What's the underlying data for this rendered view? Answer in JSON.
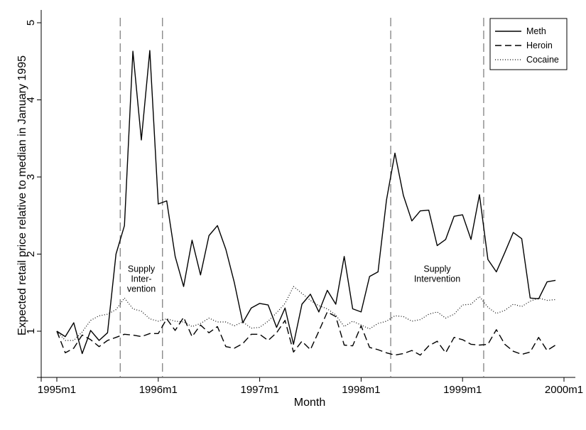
{
  "chart_data": {
    "type": "line",
    "xlabel": "Month",
    "ylabel": "Expected retail price relative to median in January 1995",
    "x_ticks": [
      {
        "value": 0,
        "label": "1995m1"
      },
      {
        "value": 12,
        "label": "1996m1"
      },
      {
        "value": 24,
        "label": "1997m1"
      },
      {
        "value": 36,
        "label": "1998m1"
      },
      {
        "value": 48,
        "label": "1999m1"
      },
      {
        "value": 60,
        "label": "2000m1"
      }
    ],
    "y_ticks": [
      1,
      2,
      3,
      4,
      5
    ],
    "xlim": [
      0,
      60
    ],
    "ylim": [
      0.5,
      5
    ],
    "grid": false,
    "legend_position": "top-right",
    "series": [
      {
        "name": "Meth",
        "style": "solid",
        "x": [
          0,
          1,
          2,
          3,
          4,
          5,
          6,
          7,
          8,
          9,
          10,
          11,
          12,
          13,
          14,
          15,
          16,
          17,
          18,
          19,
          20,
          21,
          22,
          23,
          24,
          25,
          26,
          27,
          28,
          29,
          30,
          31,
          32,
          33,
          34,
          35,
          36,
          37,
          38,
          39,
          40,
          41,
          42,
          43,
          44,
          45,
          46,
          47,
          48,
          49,
          50,
          51,
          52,
          53,
          54,
          55,
          56,
          57,
          58,
          59
        ],
        "values": [
          1.0,
          0.93,
          1.11,
          0.71,
          1.01,
          0.88,
          0.98,
          2.0,
          2.37,
          4.63,
          3.48,
          4.64,
          2.65,
          2.69,
          1.97,
          1.58,
          2.18,
          1.73,
          2.24,
          2.37,
          2.06,
          1.63,
          1.11,
          1.3,
          1.36,
          1.34,
          1.05,
          1.3,
          0.83,
          1.35,
          1.48,
          1.25,
          1.53,
          1.35,
          1.97,
          1.29,
          1.25,
          1.71,
          1.77,
          2.7,
          3.31,
          2.76,
          2.43,
          2.56,
          2.57,
          2.11,
          2.19,
          2.49,
          2.51,
          2.19,
          2.77,
          1.93,
          1.77,
          2.02,
          2.28,
          2.2,
          1.43,
          1.42,
          1.64,
          1.66
        ]
      },
      {
        "name": "Heroin",
        "style": "dashed",
        "x": [
          0,
          1,
          2,
          3,
          4,
          5,
          6,
          7,
          8,
          9,
          10,
          11,
          12,
          13,
          14,
          15,
          16,
          17,
          18,
          19,
          20,
          21,
          22,
          23,
          24,
          25,
          26,
          27,
          28,
          29,
          30,
          31,
          32,
          33,
          34,
          35,
          36,
          37,
          38,
          39,
          40,
          41,
          42,
          43,
          44,
          45,
          46,
          47,
          48,
          49,
          50,
          51,
          52,
          53,
          54,
          55,
          56,
          57,
          58,
          59
        ],
        "values": [
          1.0,
          0.72,
          0.78,
          0.95,
          0.89,
          0.8,
          0.88,
          0.92,
          0.96,
          0.95,
          0.93,
          0.97,
          0.97,
          1.16,
          1.01,
          1.18,
          0.93,
          1.08,
          0.98,
          1.06,
          0.8,
          0.78,
          0.84,
          0.96,
          0.96,
          0.88,
          0.98,
          1.14,
          0.73,
          0.87,
          0.76,
          1.0,
          1.25,
          1.19,
          0.82,
          0.81,
          1.07,
          0.79,
          0.76,
          0.72,
          0.69,
          0.71,
          0.75,
          0.69,
          0.81,
          0.87,
          0.72,
          0.92,
          0.89,
          0.83,
          0.82,
          0.83,
          1.02,
          0.83,
          0.74,
          0.7,
          0.73,
          0.92,
          0.75,
          0.82
        ]
      },
      {
        "name": "Cocaine",
        "style": "dotted",
        "x": [
          0,
          1,
          2,
          3,
          4,
          5,
          6,
          7,
          8,
          9,
          10,
          11,
          12,
          13,
          14,
          15,
          16,
          17,
          18,
          19,
          20,
          21,
          22,
          23,
          24,
          25,
          26,
          27,
          28,
          29,
          30,
          31,
          32,
          33,
          34,
          35,
          36,
          37,
          38,
          39,
          40,
          41,
          42,
          43,
          44,
          45,
          46,
          47,
          48,
          49,
          50,
          51,
          52,
          53,
          54,
          55,
          56,
          57,
          58,
          59
        ],
        "values": [
          1.0,
          0.88,
          0.88,
          0.99,
          1.14,
          1.2,
          1.22,
          1.28,
          1.43,
          1.29,
          1.26,
          1.16,
          1.13,
          1.16,
          1.13,
          1.12,
          1.06,
          1.1,
          1.17,
          1.12,
          1.12,
          1.07,
          1.12,
          1.04,
          1.05,
          1.13,
          1.24,
          1.36,
          1.58,
          1.49,
          1.4,
          1.33,
          1.29,
          1.21,
          1.06,
          1.13,
          1.08,
          1.03,
          1.1,
          1.13,
          1.2,
          1.19,
          1.13,
          1.15,
          1.22,
          1.25,
          1.17,
          1.22,
          1.34,
          1.35,
          1.45,
          1.31,
          1.23,
          1.27,
          1.35,
          1.32,
          1.39,
          1.43,
          1.4,
          1.41
        ]
      }
    ],
    "vertical_lines": [
      7.5,
      12.5,
      39.5,
      50.5
    ],
    "annotations": [
      {
        "lines": [
          "Supply",
          "Inter-",
          "vention"
        ],
        "x": 10,
        "y": 1.77
      },
      {
        "lines": [
          "Supply",
          "Intervention"
        ],
        "x": 45,
        "y": 1.77
      }
    ]
  }
}
